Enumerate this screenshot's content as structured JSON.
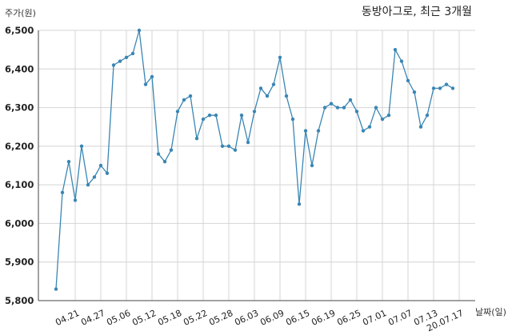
{
  "chart_data": {
    "type": "line",
    "title": "동방아그로, 최근 3개월",
    "ylabel": "주가(원)",
    "xlabel": "날짜(일)",
    "ylim": [
      5800,
      6500
    ],
    "yticks": [
      5800,
      5900,
      6000,
      6100,
      6200,
      6300,
      6400,
      6500
    ],
    "ytick_labels": [
      "5,800",
      "5,900",
      "6,000",
      "6,100",
      "6,200",
      "6,300",
      "6,400",
      "6,500"
    ],
    "xtick_labels": [
      "04.21",
      "04.27",
      "05.06",
      "05.12",
      "05.18",
      "05.22",
      "05.28",
      "06.03",
      "06.09",
      "06.15",
      "06.19",
      "06.25",
      "07.01",
      "07.07",
      "07.13",
      "20.07.17"
    ],
    "xtick_index": [
      3,
      7,
      11,
      15,
      19,
      23,
      27,
      31,
      35,
      39,
      43,
      47,
      51,
      55,
      59,
      63
    ],
    "grid": true,
    "color": "#3a86b4",
    "series": [
      {
        "values": [
          5830,
          6080,
          6160,
          6060,
          6200,
          6100,
          6120,
          6150,
          6130,
          6410,
          6420,
          6430,
          6440,
          6500,
          6360,
          6380,
          6180,
          6160,
          6190,
          6290,
          6320,
          6330,
          6220,
          6270,
          6280,
          6280,
          6200,
          6200,
          6190,
          6280,
          6210,
          6290,
          6350,
          6330,
          6360,
          6430,
          6330,
          6270,
          6050,
          6240,
          6150,
          6240,
          6300,
          6310,
          6300,
          6300,
          6320,
          6290,
          6240,
          6250,
          6300,
          6270,
          6280,
          6450,
          6420,
          6370,
          6340,
          6250,
          6280,
          6350,
          6350,
          6360,
          6350
        ]
      }
    ]
  }
}
